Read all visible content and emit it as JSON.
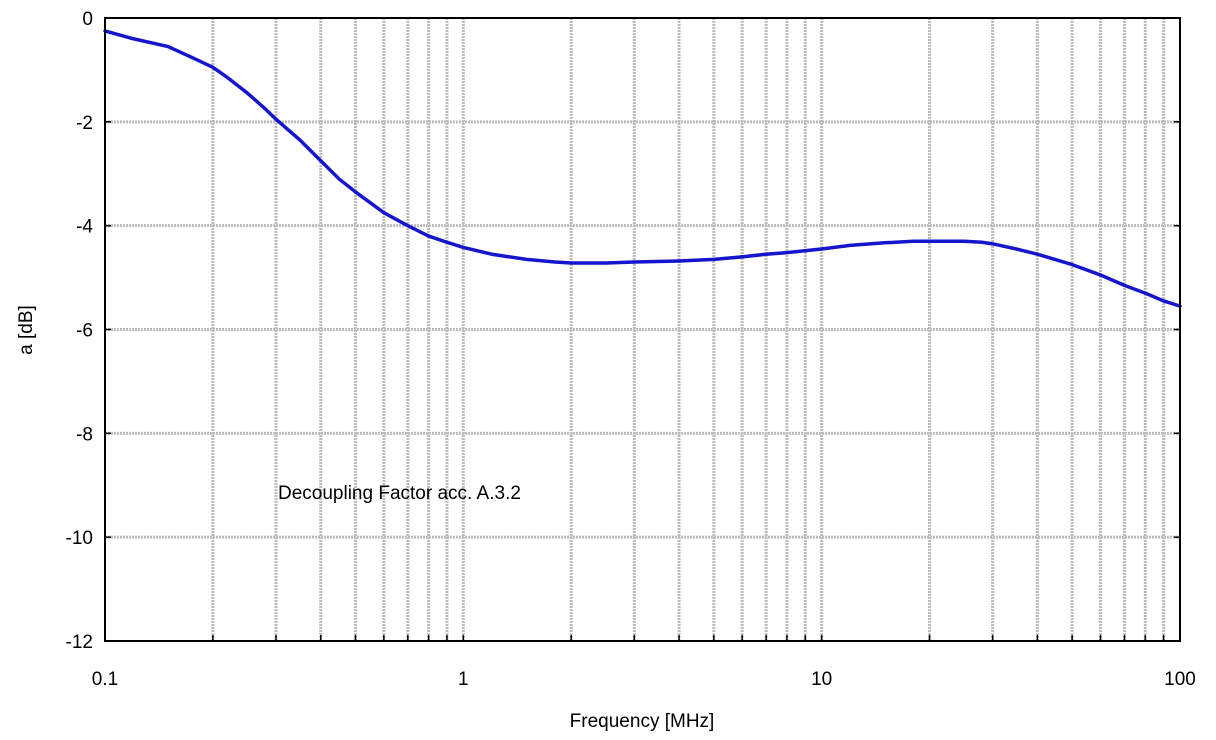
{
  "chart_data": {
    "type": "line",
    "annotation": "Decoupling Factor acc. A.3.2",
    "xlabel": "Frequency [MHz]",
    "ylabel": "a [dB]",
    "x_scale": "log",
    "xlim": [
      0.1,
      100
    ],
    "ylim": [
      -12,
      0
    ],
    "grid": true,
    "x_tick_labels": [
      "0.1",
      "1",
      "10",
      "100"
    ],
    "x_tick_values": [
      0.1,
      1,
      10,
      100
    ],
    "y_tick_labels": [
      "0",
      "-2",
      "-4",
      "-6",
      "-8",
      "-10",
      "-12"
    ],
    "y_tick_values": [
      0,
      -2,
      -4,
      -6,
      -8,
      -10,
      -12
    ],
    "line_color": "#1515cc",
    "series": [
      {
        "x": [
          0.1,
          0.12,
          0.15,
          0.18,
          0.2,
          0.22,
          0.25,
          0.28,
          0.3,
          0.35,
          0.4,
          0.45,
          0.5,
          0.6,
          0.7,
          0.8,
          0.9,
          1.0,
          1.2,
          1.5,
          1.8,
          2.0,
          2.5,
          3.0,
          4.0,
          5.0,
          6.0,
          7.0,
          8.0,
          10.0,
          12.0,
          15.0,
          18.0,
          20.0,
          25.0,
          28.0,
          30.0,
          35.0,
          40.0,
          50.0,
          60.0,
          70.0,
          80.0,
          90.0,
          100.0
        ],
        "y": [
          -0.25,
          -0.4,
          -0.55,
          -0.8,
          -0.95,
          -1.15,
          -1.45,
          -1.75,
          -1.95,
          -2.35,
          -2.75,
          -3.1,
          -3.35,
          -3.75,
          -4.0,
          -4.2,
          -4.32,
          -4.42,
          -4.55,
          -4.65,
          -4.7,
          -4.72,
          -4.72,
          -4.7,
          -4.68,
          -4.65,
          -4.6,
          -4.55,
          -4.52,
          -4.45,
          -4.38,
          -4.33,
          -4.3,
          -4.3,
          -4.3,
          -4.32,
          -4.35,
          -4.45,
          -4.55,
          -4.75,
          -4.95,
          -5.15,
          -5.3,
          -5.45,
          -5.55
        ]
      }
    ]
  }
}
